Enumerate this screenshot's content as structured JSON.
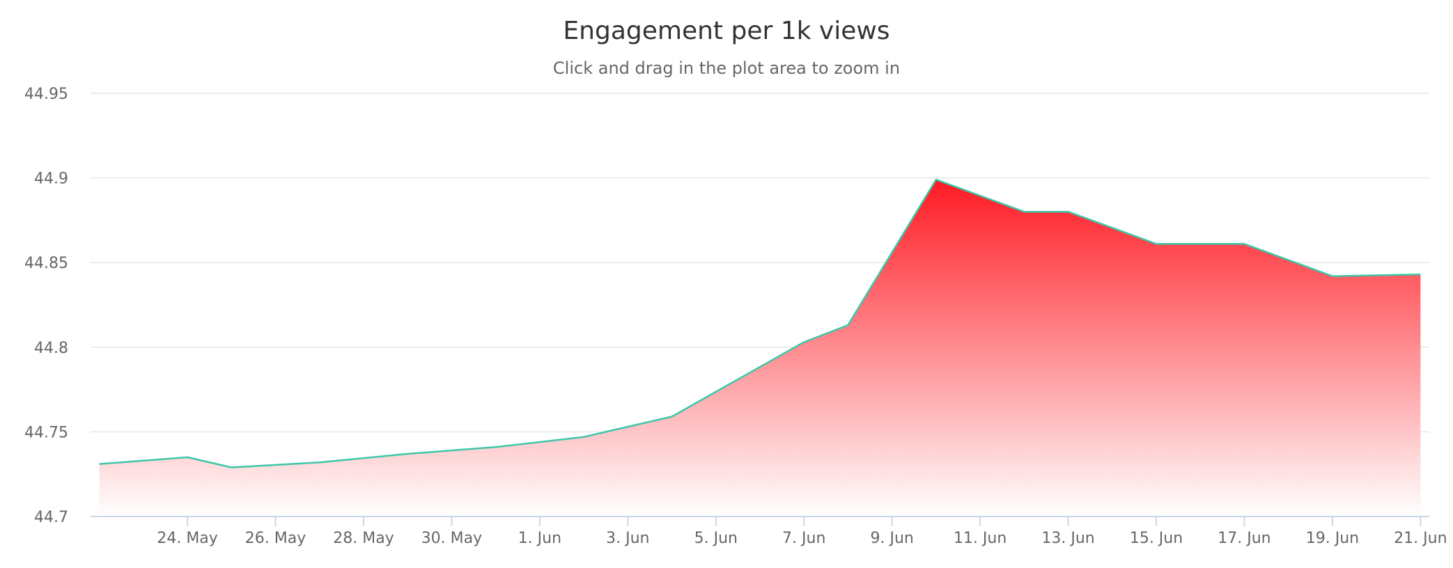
{
  "chart_data": {
    "type": "area",
    "title": "Engagement per 1k views",
    "subtitle": "Click and drag in the plot area to zoom in",
    "xlabel": "",
    "ylabel": "",
    "ylim": [
      44.7,
      44.95
    ],
    "yticks": [
      "44.95",
      "44.9",
      "44.85",
      "44.8",
      "44.75",
      "44.7"
    ],
    "xlim": [
      "2017-05-22",
      "2017-06-21"
    ],
    "xticks": [
      {
        "date": "2017-05-24",
        "label": "24. May"
      },
      {
        "date": "2017-05-26",
        "label": "26. May"
      },
      {
        "date": "2017-05-28",
        "label": "28. May"
      },
      {
        "date": "2017-05-30",
        "label": "30. May"
      },
      {
        "date": "2017-06-01",
        "label": "1. Jun"
      },
      {
        "date": "2017-06-03",
        "label": "3. Jun"
      },
      {
        "date": "2017-06-05",
        "label": "5. Jun"
      },
      {
        "date": "2017-06-07",
        "label": "7. Jun"
      },
      {
        "date": "2017-06-09",
        "label": "9. Jun"
      },
      {
        "date": "2017-06-11",
        "label": "11. Jun"
      },
      {
        "date": "2017-06-13",
        "label": "13. Jun"
      },
      {
        "date": "2017-06-15",
        "label": "15. Jun"
      },
      {
        "date": "2017-06-17",
        "label": "17. Jun"
      },
      {
        "date": "2017-06-19",
        "label": "19. Jun"
      },
      {
        "date": "2017-06-21",
        "label": "21. Jun"
      }
    ],
    "grid": true,
    "legend": "none",
    "series": [
      {
        "x": [
          "2017-05-22",
          "2017-05-24",
          "2017-05-25",
          "2017-05-27",
          "2017-05-29",
          "2017-05-31",
          "2017-06-02",
          "2017-06-04",
          "2017-06-07",
          "2017-06-08",
          "2017-06-10",
          "2017-06-12",
          "2017-06-13",
          "2017-06-15",
          "2017-06-17",
          "2017-06-19",
          "2017-06-21"
        ],
        "y": [
          44.731,
          44.735,
          44.729,
          44.732,
          44.737,
          44.741,
          44.747,
          44.759,
          44.803,
          44.813,
          44.899,
          44.88,
          44.88,
          44.861,
          44.861,
          44.842,
          44.843
        ]
      }
    ],
    "colors": {
      "line": "#3cc7a8",
      "fill_top": "#ff1a23",
      "fill_bottom": "#ffffff",
      "grid": "#e6e6e6",
      "axis": "#ccd6eb"
    }
  }
}
